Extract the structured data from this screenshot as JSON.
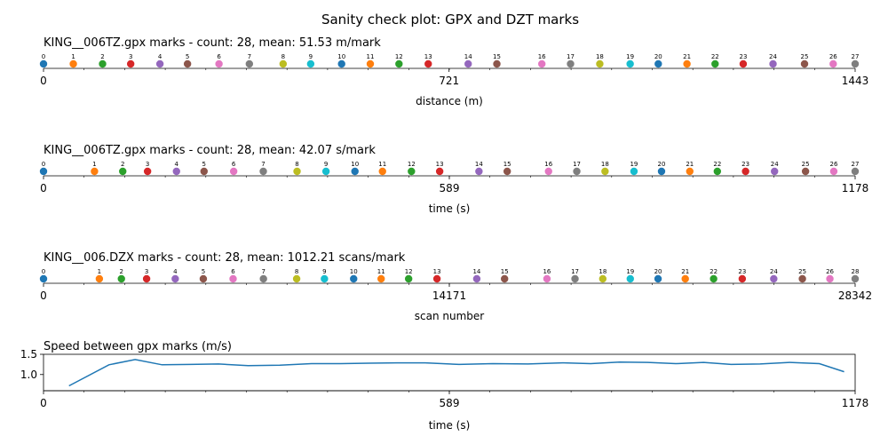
{
  "figure": {
    "suptitle": "Sanity check plot: GPX and DZT marks"
  },
  "colors": [
    "#1f77b4",
    "#ff7f0e",
    "#2ca02c",
    "#d62728",
    "#9467bd",
    "#8c564b",
    "#e377c2",
    "#7f7f7f",
    "#bcbd22",
    "#17becf"
  ],
  "chart_data": [
    {
      "type": "scatter",
      "title": "KING__006TZ.gpx marks - count: 28, mean: 51.53 m/mark",
      "xlabel": "distance (m)",
      "xlim": [
        0,
        1443
      ],
      "xticks": [
        0,
        721,
        1443
      ],
      "labels": [
        "0",
        "1",
        "2",
        "3",
        "4",
        "5",
        "6",
        "7",
        "8",
        "9",
        "10",
        "11",
        "12",
        "13",
        "14",
        "15",
        "16",
        "17",
        "18",
        "19",
        "20",
        "21",
        "22",
        "23",
        "24",
        "25",
        "26",
        "27"
      ],
      "x": [
        0,
        53,
        105,
        155,
        207,
        256,
        312,
        366,
        426,
        475,
        530,
        581,
        632,
        684,
        755,
        806,
        886,
        937,
        989,
        1043,
        1093,
        1144,
        1194,
        1244,
        1297,
        1353,
        1404,
        1443
      ]
    },
    {
      "type": "scatter",
      "title": "KING__006TZ.gpx marks - count: 28, mean: 42.07 s/mark",
      "xlabel": "time (s)",
      "xlim": [
        0,
        1178
      ],
      "xticks": [
        0,
        589,
        1178
      ],
      "labels": [
        "0",
        "1",
        "2",
        "3",
        "4",
        "5",
        "6",
        "7",
        "8",
        "9",
        "10",
        "11",
        "12",
        "13",
        "14",
        "15",
        "16",
        "17",
        "18",
        "19",
        "20",
        "21",
        "22",
        "23",
        "24",
        "25",
        "26",
        "27"
      ],
      "x": [
        0,
        74,
        115,
        151,
        193,
        233,
        276,
        319,
        368,
        410,
        452,
        492,
        534,
        575,
        632,
        673,
        733,
        774,
        815,
        857,
        897,
        938,
        978,
        1019,
        1061,
        1106,
        1147,
        1178
      ]
    },
    {
      "type": "scatter",
      "title": "KING__006.DZX marks - count: 28, mean: 1012.21 scans/mark",
      "xlabel": "scan number",
      "xlim": [
        0,
        28342
      ],
      "xticks": [
        0,
        14171,
        28342
      ],
      "labels": [
        "0",
        "1",
        "2",
        "3",
        "4",
        "5",
        "6",
        "7",
        "8",
        "9",
        "10",
        "11",
        "12",
        "13",
        "14",
        "15",
        "16",
        "17",
        "18",
        "19",
        "20",
        "21",
        "22",
        "23",
        "24",
        "25",
        "26",
        "28"
      ],
      "x": [
        0,
        1950,
        2720,
        3600,
        4600,
        5580,
        6620,
        7680,
        8840,
        9810,
        10830,
        11790,
        12750,
        13740,
        15130,
        16100,
        17580,
        18560,
        19530,
        20490,
        21460,
        22410,
        23400,
        24400,
        25500,
        26500,
        27460,
        28342
      ]
    },
    {
      "type": "line",
      "title": "Speed between gpx marks (m/s)",
      "xlabel": "time (s)",
      "xlim": [
        0,
        1178
      ],
      "xticks": [
        0,
        589,
        1178
      ],
      "ylim": [
        0.6,
        1.5
      ],
      "yticks": [
        "1.0",
        "1.5"
      ],
      "x": [
        37,
        95,
        133,
        172,
        213,
        254,
        297,
        343,
        389,
        431,
        472,
        513,
        554,
        603,
        652,
        703,
        753,
        794,
        836,
        877,
        918,
        958,
        998,
        1040,
        1083,
        1126,
        1162
      ],
      "y": [
        0.72,
        1.24,
        1.37,
        1.24,
        1.25,
        1.26,
        1.22,
        1.23,
        1.27,
        1.27,
        1.28,
        1.29,
        1.29,
        1.25,
        1.27,
        1.26,
        1.29,
        1.27,
        1.31,
        1.3,
        1.27,
        1.3,
        1.25,
        1.26,
        1.3,
        1.27,
        1.07
      ]
    }
  ]
}
